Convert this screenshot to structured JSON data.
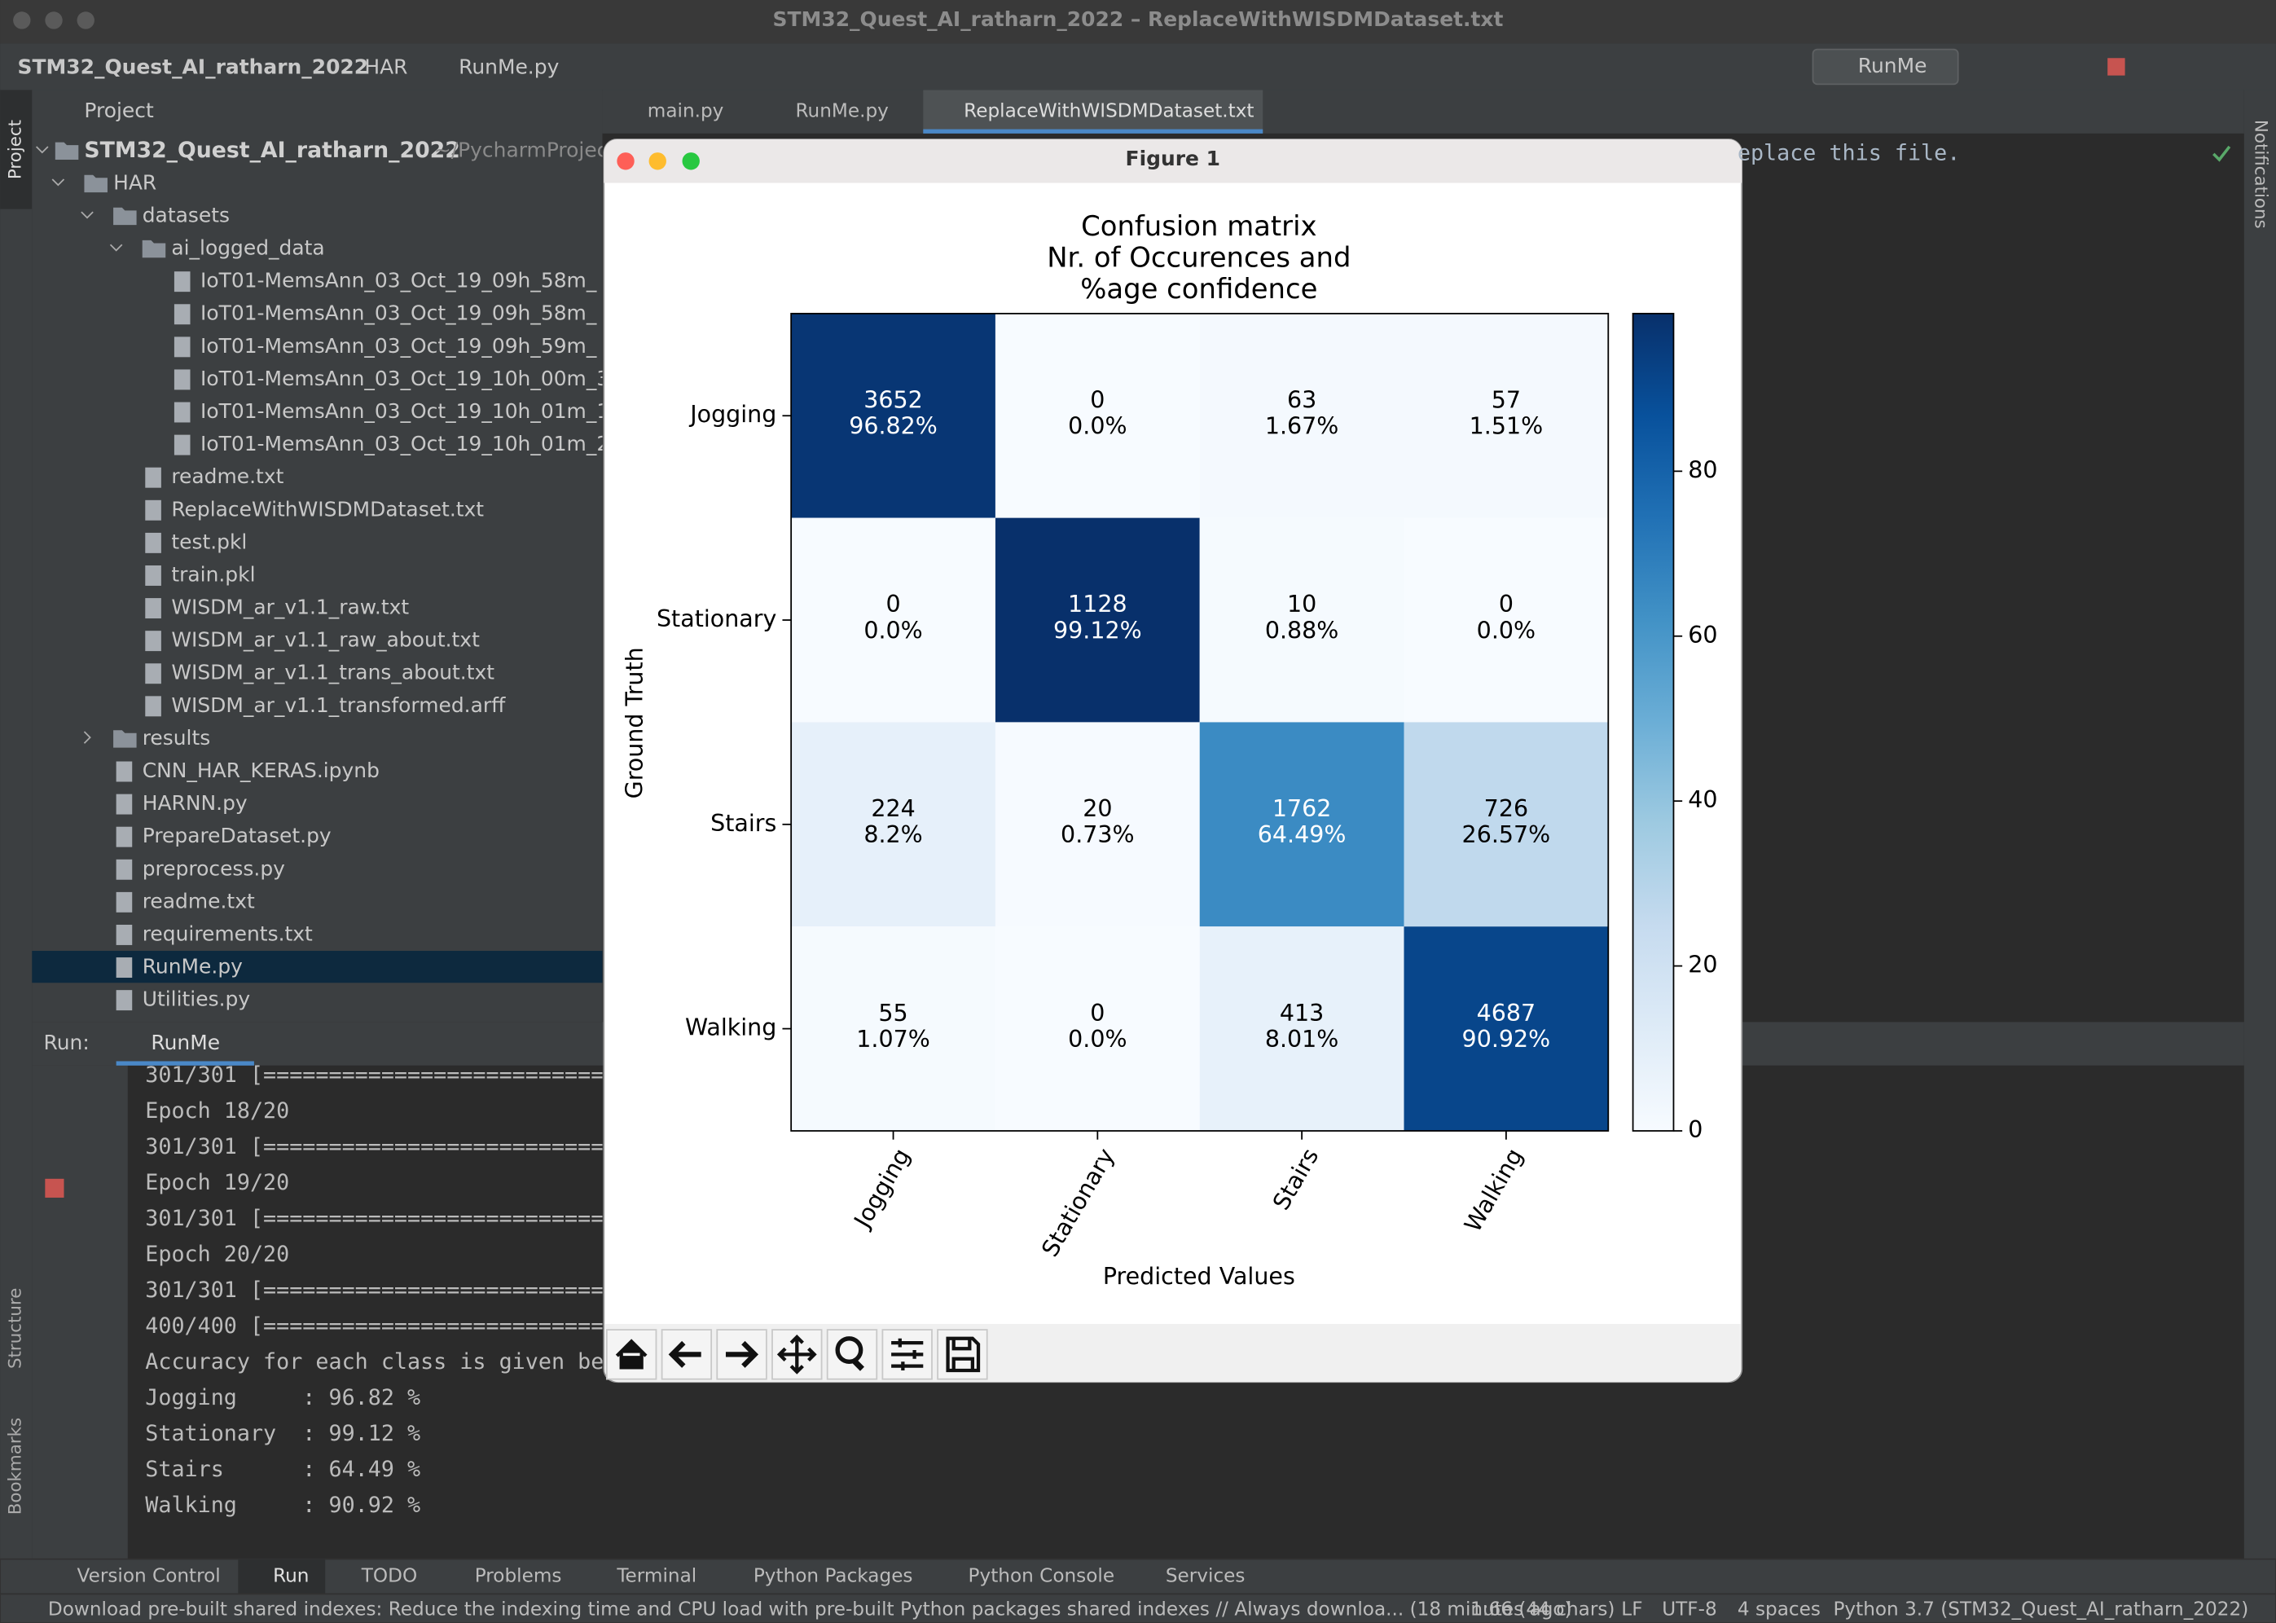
{
  "window": {
    "title": "STM32_Quest_AI_ratharn_2022 – ReplaceWithWISDMDataset.txt"
  },
  "breadcrumb": [
    "STM32_Quest_AI_ratharn_2022",
    "HAR",
    "RunMe.py"
  ],
  "run_config": "RunMe",
  "side_tabs": {
    "left": [
      "Project",
      "Structure",
      "Bookmarks"
    ],
    "right": [
      "Notifications"
    ]
  },
  "project_panel": {
    "title": "Project",
    "root": "STM32_Quest_AI_ratharn_2022",
    "root_path": "~/PycharmProjec",
    "items": [
      "HAR",
      "datasets",
      "ai_logged_data",
      "IoT01-MemsAnn_03_Oct_19_09h_58m_",
      "IoT01-MemsAnn_03_Oct_19_09h_58m_",
      "IoT01-MemsAnn_03_Oct_19_09h_59m_",
      "IoT01-MemsAnn_03_Oct_19_10h_00m_3",
      "IoT01-MemsAnn_03_Oct_19_10h_01m_1",
      "IoT01-MemsAnn_03_Oct_19_10h_01m_2",
      "readme.txt",
      "ReplaceWithWISDMDataset.txt",
      "test.pkl",
      "train.pkl",
      "WISDM_ar_v1.1_raw.txt",
      "WISDM_ar_v1.1_raw_about.txt",
      "WISDM_ar_v1.1_trans_about.txt",
      "WISDM_ar_v1.1_transformed.arff",
      "results",
      "CNN_HAR_KERAS.ipynb",
      "HARNN.py",
      "PrepareDataset.py",
      "preprocess.py",
      "readme.txt",
      "requirements.txt",
      "RunMe.py",
      "Utilities.py"
    ]
  },
  "editor": {
    "tabs": [
      "main.py",
      "RunMe.py",
      "ReplaceWithWISDMDataset.txt"
    ],
    "text": "eplace this file."
  },
  "run_panel": {
    "label": "Run:",
    "tab": "RunMe",
    "lines": [
      "301/301 [==========================",
      "Epoch 18/20",
      "301/301 [==========================",
      "Epoch 19/20",
      "301/301 [==========================",
      "Epoch 20/20",
      "301/301 [==========================",
      "400/400 [==========================",
      "Accuracy for each class is given be",
      "Jogging     : 96.82 %",
      "Stationary  : 99.12 %",
      "Stairs      : 64.49 %",
      "Walking     : 90.92 %"
    ]
  },
  "figure": {
    "title": "Figure 1",
    "chart_data": {
      "type": "heatmap",
      "title": [
        "Confusion matrix",
        "Nr. of Occurences and",
        "%age confidence"
      ],
      "xlabel": "Predicted Values",
      "ylabel": "Ground Truth",
      "categories": [
        "Jogging",
        "Stationary",
        "Stairs",
        "Walking"
      ],
      "counts": [
        [
          3652,
          0,
          63,
          57
        ],
        [
          0,
          1128,
          10,
          0
        ],
        [
          224,
          20,
          1762,
          726
        ],
        [
          55,
          0,
          413,
          4687
        ]
      ],
      "values": [
        [
          96.82,
          0,
          1.67,
          1.51
        ],
        [
          0,
          99.12,
          0.88,
          0
        ],
        [
          8.2,
          0.73,
          64.49,
          26.57
        ],
        [
          1.07,
          0,
          8.01,
          90.92
        ]
      ],
      "value_labels": [
        [
          "96.82%",
          "0.0%",
          "1.67%",
          "1.51%"
        ],
        [
          "0.0%",
          "99.12%",
          "0.88%",
          "0.0%"
        ],
        [
          "8.2%",
          "0.73%",
          "64.49%",
          "26.57%"
        ],
        [
          "1.07%",
          "0.0%",
          "8.01%",
          "90.92%"
        ]
      ],
      "colormap": "Blues",
      "clim": [
        0,
        99.12
      ],
      "cticks": [
        0,
        20,
        40,
        60,
        80
      ]
    }
  },
  "tool_tabs": [
    "Version Control",
    "Run",
    "TODO",
    "Problems",
    "Terminal",
    "Python Packages",
    "Python Console",
    "Services"
  ],
  "status_bar": {
    "message": "Download pre-built shared indexes: Reduce the indexing time and CPU load with pre-built Python packages shared indexes // Always downloa... (18 minutes ago)",
    "items": [
      "1:66 (44 chars)",
      "LF",
      "UTF-8",
      "4 spaces",
      "Python 3.7 (STM32_Quest_AI_ratharn_2022)"
    ]
  }
}
